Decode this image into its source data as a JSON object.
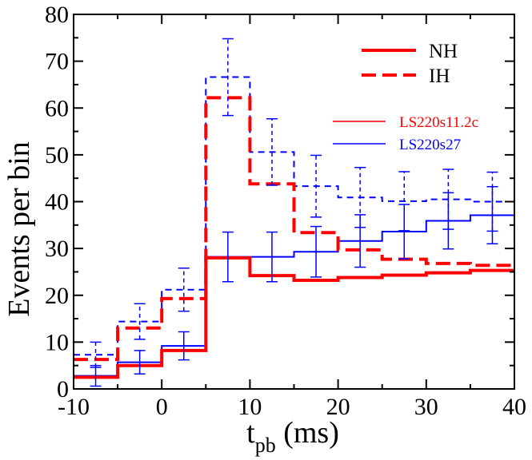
{
  "chart_data": {
    "type": "line",
    "subtype": "step-histogram",
    "title": "",
    "xlabel": "t",
    "xlabel_sub": "pb",
    "xlabel_units": " (ms)",
    "ylabel": "Events per bin",
    "xlim": [
      -10,
      40
    ],
    "ylim": [
      0,
      80
    ],
    "x_ticks": [
      -10,
      0,
      10,
      20,
      30,
      40
    ],
    "y_ticks": [
      0,
      10,
      20,
      30,
      40,
      50,
      60,
      70,
      80
    ],
    "bin_edges": [
      -10,
      -5,
      0,
      5,
      10,
      15,
      20,
      25,
      30,
      35,
      40
    ],
    "legend_groups": {
      "ordering": [
        {
          "label": "NH",
          "style": "solid"
        },
        {
          "label": "IH",
          "style": "dashed"
        }
      ],
      "models": [
        {
          "label": "LS220s11.2c",
          "color": "#ff0000"
        },
        {
          "label": "LS220s27",
          "color": "#0000ff"
        }
      ]
    },
    "series": [
      {
        "name": "LS220s11.2c NH",
        "color": "#ff0000",
        "style": "solid",
        "width": "thick",
        "values": [
          2.5,
          5.0,
          8.2,
          28.0,
          24.2,
          23.2,
          23.8,
          24.3,
          24.8,
          25.3
        ]
      },
      {
        "name": "LS220s11.2c IH",
        "color": "#ff0000",
        "style": "dashed",
        "width": "thick",
        "values": [
          6.3,
          13.0,
          19.3,
          62.2,
          43.8,
          33.4,
          29.7,
          27.7,
          26.8,
          26.4
        ]
      },
      {
        "name": "LS220s27 NH",
        "color": "#0000ff",
        "style": "solid",
        "width": "thin",
        "values": [
          2.8,
          5.7,
          9.2,
          28.2,
          28.2,
          29.3,
          31.6,
          33.6,
          35.9,
          37.1
        ],
        "errors": [
          2.2,
          2.5,
          3.0,
          5.3,
          5.3,
          5.4,
          5.6,
          5.8,
          6.0,
          6.1
        ]
      },
      {
        "name": "LS220s27 IH",
        "color": "#0000ff",
        "style": "dashed",
        "width": "thin",
        "values": [
          7.3,
          14.4,
          21.2,
          66.6,
          50.6,
          43.3,
          40.9,
          40.1,
          40.5,
          40.0
        ],
        "errors": [
          2.7,
          3.8,
          4.6,
          8.2,
          7.1,
          6.6,
          6.4,
          6.3,
          6.4,
          6.3
        ]
      }
    ]
  }
}
